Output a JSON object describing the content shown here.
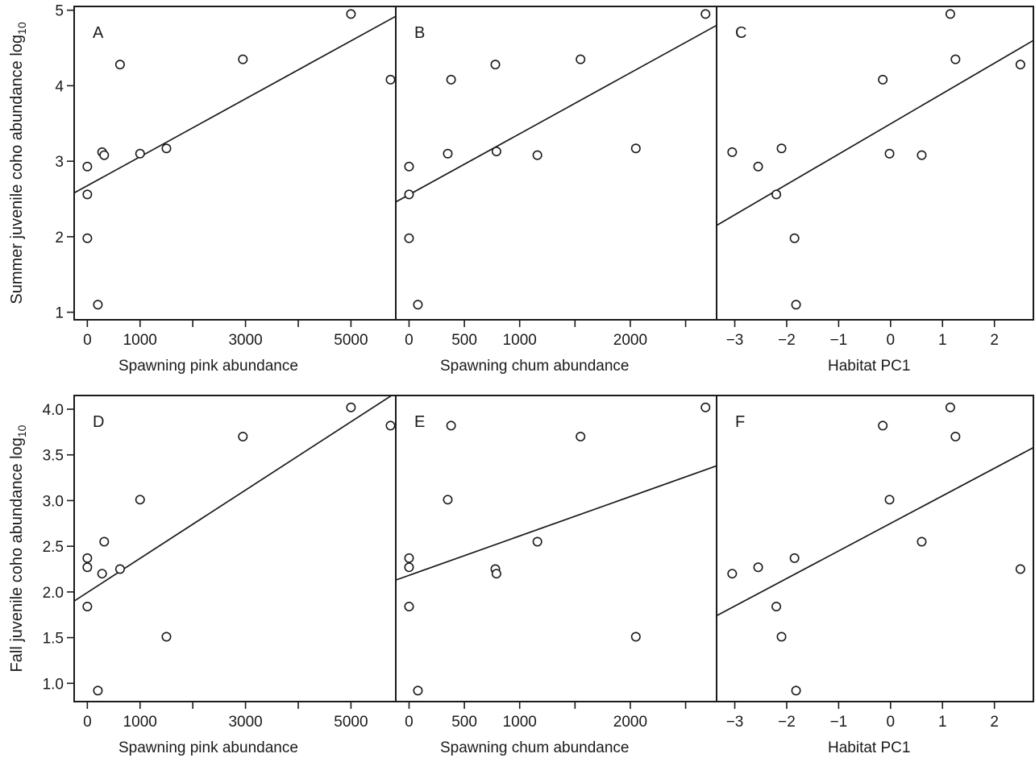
{
  "chart_data": {
    "type": "scatter",
    "grid": false,
    "y_axis_titles": [
      {
        "row": 0,
        "main": "Summer juvenile coho abundance log",
        "sub": "10"
      },
      {
        "row": 1,
        "main": "Fall juvenile coho abundance log",
        "sub": "10"
      }
    ],
    "panels": [
      {
        "label": "A",
        "row": 0,
        "col": 0,
        "xlabel": "Spawning pink abundance",
        "xlim": [
          -250,
          5850
        ],
        "ylim": [
          0.9,
          5.05
        ],
        "xticks": [
          0,
          1000,
          2000,
          3000,
          4000,
          5000
        ],
        "xtick_labels": [
          "0",
          "1000",
          "",
          "3000",
          "",
          "5000"
        ],
        "yticks": [
          1,
          2,
          3,
          4,
          5
        ],
        "ytick_labels": [
          "1",
          "2",
          "3",
          "4",
          "5"
        ],
        "x": [
          0,
          0,
          0,
          200,
          280,
          320,
          620,
          1000,
          1500,
          2950,
          5000,
          5750
        ],
        "y": [
          2.93,
          2.56,
          1.98,
          1.1,
          3.12,
          3.08,
          4.28,
          3.1,
          3.17,
          4.35,
          4.95,
          4.08
        ],
        "fit": {
          "x": [
            -250,
            5850
          ],
          "y": [
            2.58,
            4.92
          ]
        }
      },
      {
        "label": "B",
        "row": 0,
        "col": 1,
        "xlabel": "Spawning chum abundance",
        "xlim": [
          -120,
          2780
        ],
        "ylim": [
          0.9,
          5.05
        ],
        "xticks": [
          0,
          500,
          1000,
          1500,
          2000,
          2500
        ],
        "xtick_labels": [
          "0",
          "500",
          "1000",
          "",
          "2000",
          ""
        ],
        "yticks": [
          1,
          2,
          3,
          4,
          5
        ],
        "ytick_labels": [
          "1",
          "2",
          "3",
          "4",
          "5"
        ],
        "x": [
          0,
          0,
          0,
          80,
          350,
          380,
          780,
          790,
          1160,
          1550,
          2050,
          2680
        ],
        "y": [
          2.93,
          2.56,
          1.98,
          1.1,
          3.1,
          4.08,
          4.28,
          3.13,
          3.08,
          4.35,
          3.17,
          4.95
        ],
        "fit": {
          "x": [
            -120,
            2780
          ],
          "y": [
            2.46,
            4.8
          ]
        }
      },
      {
        "label": "C",
        "row": 0,
        "col": 2,
        "xlabel": "Habitat PC1",
        "xlim": [
          -3.35,
          2.75
        ],
        "ylim": [
          0.9,
          5.05
        ],
        "xticks": [
          -3,
          -2,
          -1,
          0,
          1,
          2
        ],
        "xtick_labels": [
          "−3",
          "−2",
          "−1",
          "0",
          "1",
          "2"
        ],
        "yticks": [
          1,
          2,
          3,
          4,
          5
        ],
        "ytick_labels": [
          "1",
          "2",
          "3",
          "4",
          "5"
        ],
        "x": [
          -3.05,
          -2.55,
          -2.2,
          -2.1,
          -1.85,
          -1.82,
          -0.15,
          -0.02,
          0.6,
          1.15,
          1.25,
          2.5
        ],
        "y": [
          3.12,
          2.93,
          2.56,
          3.17,
          1.98,
          1.1,
          4.08,
          3.1,
          3.08,
          4.95,
          4.35,
          4.28
        ],
        "fit": {
          "x": [
            -3.35,
            2.75
          ],
          "y": [
            2.15,
            4.6
          ]
        }
      },
      {
        "label": "D",
        "row": 1,
        "col": 0,
        "xlabel": "Spawning pink abundance",
        "xlim": [
          -250,
          5850
        ],
        "ylim": [
          0.8,
          4.15
        ],
        "xticks": [
          0,
          1000,
          2000,
          3000,
          4000,
          5000
        ],
        "xtick_labels": [
          "0",
          "1000",
          "",
          "3000",
          "",
          "5000"
        ],
        "yticks": [
          1,
          1.5,
          2,
          2.5,
          3,
          3.5,
          4
        ],
        "ytick_labels": [
          "1.0",
          "1.5",
          "2.0",
          "2.5",
          "3.0",
          "3.5",
          "4.0"
        ],
        "x": [
          0,
          0,
          0,
          200,
          280,
          320,
          620,
          1000,
          1500,
          2950,
          5000,
          5750
        ],
        "y": [
          2.37,
          2.27,
          1.84,
          0.92,
          2.2,
          2.55,
          2.25,
          3.01,
          1.51,
          3.7,
          4.02,
          3.82
        ],
        "fit": {
          "x": [
            -250,
            5850
          ],
          "y": [
            1.9,
            4.18
          ]
        }
      },
      {
        "label": "E",
        "row": 1,
        "col": 1,
        "xlabel": "Spawning chum abundance",
        "xlim": [
          -120,
          2780
        ],
        "ylim": [
          0.8,
          4.15
        ],
        "xticks": [
          0,
          500,
          1000,
          1500,
          2000,
          2500
        ],
        "xtick_labels": [
          "0",
          "500",
          "1000",
          "",
          "2000",
          ""
        ],
        "yticks": [
          1,
          1.5,
          2,
          2.5,
          3,
          3.5,
          4
        ],
        "ytick_labels": [
          "1.0",
          "1.5",
          "2.0",
          "2.5",
          "3.0",
          "3.5",
          "4.0"
        ],
        "x": [
          0,
          0,
          0,
          80,
          350,
          380,
          780,
          790,
          1160,
          1550,
          2050,
          2680
        ],
        "y": [
          2.37,
          2.27,
          1.84,
          0.92,
          3.01,
          3.82,
          2.25,
          2.2,
          2.55,
          3.7,
          1.51,
          4.02
        ],
        "fit": {
          "x": [
            -120,
            2780
          ],
          "y": [
            2.13,
            3.38
          ]
        }
      },
      {
        "label": "F",
        "row": 1,
        "col": 2,
        "xlabel": "Habitat PC1",
        "xlim": [
          -3.35,
          2.75
        ],
        "ylim": [
          0.8,
          4.15
        ],
        "xticks": [
          -3,
          -2,
          -1,
          0,
          1,
          2
        ],
        "xtick_labels": [
          "−3",
          "−2",
          "−1",
          "0",
          "1",
          "2"
        ],
        "yticks": [
          1,
          1.5,
          2,
          2.5,
          3,
          3.5,
          4
        ],
        "ytick_labels": [
          "1.0",
          "1.5",
          "2.0",
          "2.5",
          "3.0",
          "3.5",
          "4.0"
        ],
        "x": [
          -3.05,
          -2.55,
          -2.2,
          -2.1,
          -1.85,
          -1.82,
          -0.15,
          -0.02,
          0.6,
          1.15,
          1.25,
          2.5
        ],
        "y": [
          2.2,
          2.27,
          1.84,
          1.51,
          2.37,
          0.92,
          3.82,
          3.01,
          2.55,
          4.02,
          3.7,
          2.25
        ],
        "fit": {
          "x": [
            -3.35,
            2.75
          ],
          "y": [
            1.74,
            3.58
          ]
        }
      }
    ]
  }
}
